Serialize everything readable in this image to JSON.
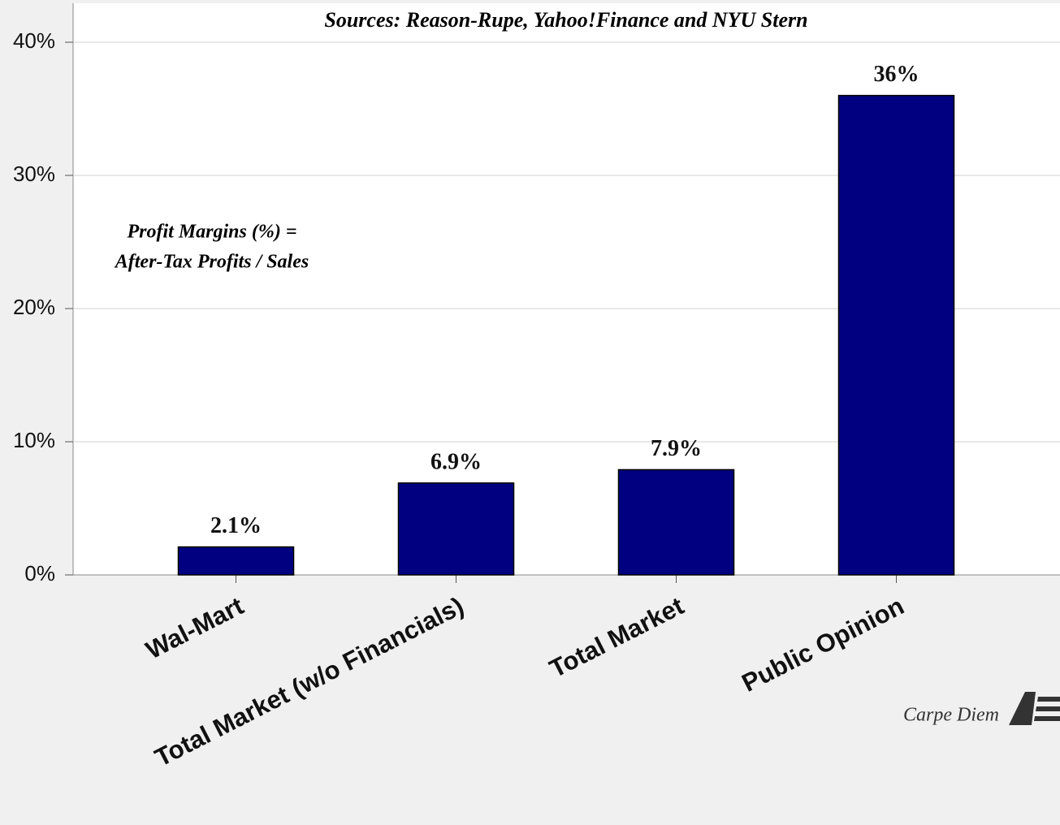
{
  "chart_data": {
    "type": "bar",
    "title": "Sources: Reason-Rupe, Yahoo!Finance and NYU Stern",
    "annotation": [
      "Profit Margins (%) =",
      "After-Tax Profits / Sales"
    ],
    "credit": "Carpe Diem",
    "categories": [
      "Wal-Mart",
      "Total Market (w/o Financials)",
      "Total Market",
      "Public Opinion"
    ],
    "values": [
      2.1,
      6.9,
      7.9,
      36
    ],
    "value_labels": [
      "2.1%",
      "6.9%",
      "7.9%",
      "36%"
    ],
    "color": "#000080",
    "ylim": [
      0,
      40
    ],
    "yticks": [
      {
        "value": 0,
        "label": "0%"
      },
      {
        "value": 10,
        "label": "10%"
      },
      {
        "value": 20,
        "label": "20%"
      },
      {
        "value": 30,
        "label": "30%"
      },
      {
        "value": 40,
        "label": "40%"
      }
    ],
    "grid": true
  }
}
